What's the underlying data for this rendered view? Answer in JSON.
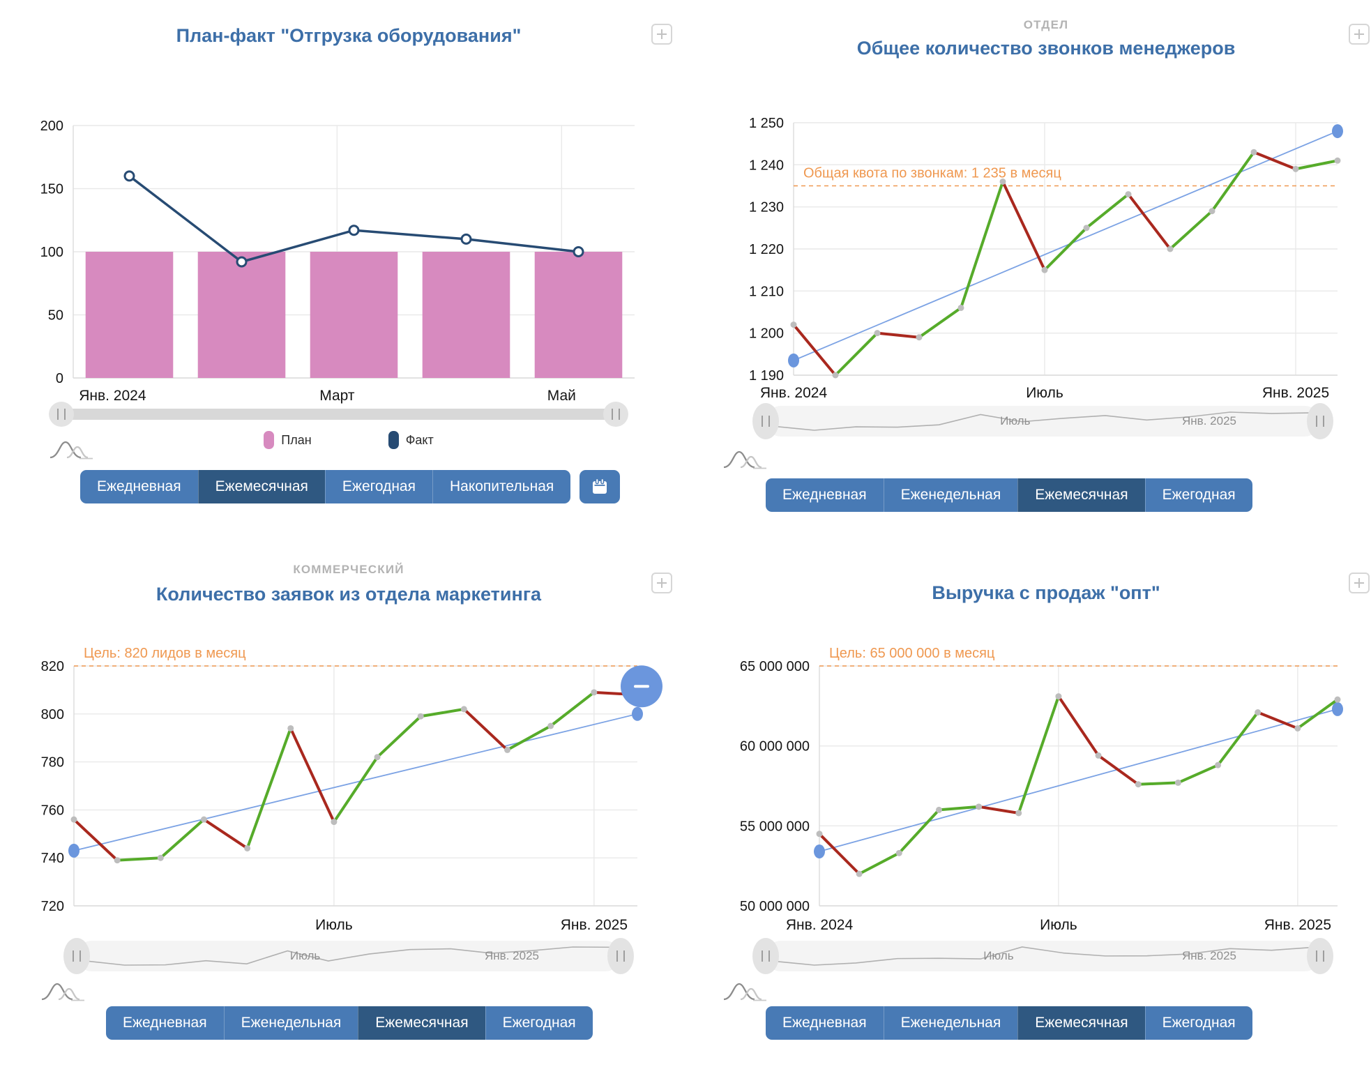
{
  "theme": {
    "title_color": "#3d6fa8",
    "dept_color": "#b3b3b3",
    "target_color": "#ef9850",
    "up_color": "#56ab2a",
    "down_color": "#a9281e",
    "trend_color": "#7ba2e4",
    "trend_dot_color": "#6b96dd",
    "marker_color": "#bdbdbd",
    "plan_color": "#d78abf",
    "fact_color": "#274b73",
    "grid_color": "#e9e9e9",
    "axis_color": "#dcdcdc",
    "axis_text_color": "#141414",
    "button_color": "#487ab5",
    "button_active_color": "#2f5881",
    "spark_color": "#b0b0b0"
  },
  "chart_data": [
    {
      "type": "bar",
      "dept_label": "",
      "title": "План-факт \"Отгрузка оборудования\"",
      "ylim": [
        0,
        200
      ],
      "y_ticks": {
        "values": [
          200,
          150,
          100,
          50,
          0
        ],
        "labels": [
          "200",
          "150",
          "100",
          "50",
          "0"
        ]
      },
      "x_ticks": [
        {
          "index": 0,
          "label": "Янв. 2024"
        },
        {
          "index": 2,
          "label": "Март"
        },
        {
          "index": 4,
          "label": "Май"
        }
      ],
      "series": [
        {
          "name": "План",
          "kind": "bar",
          "values": [
            100,
            100,
            100,
            100,
            100
          ]
        },
        {
          "name": "Факт",
          "kind": "line",
          "values": [
            160,
            92,
            117,
            110,
            100
          ]
        }
      ],
      "legend": [
        {
          "label": "План",
          "color": "#d78abf"
        },
        {
          "label": "Факт",
          "color": "#274b73"
        }
      ],
      "slider": {
        "style": "plain",
        "labels": []
      },
      "period_buttons": [
        "Ежедневная",
        "Ежемесячная",
        "Ежегодная",
        "Накопительная"
      ],
      "active_period": "Ежемесячная",
      "calendar_button": true
    },
    {
      "type": "line",
      "dept_label": "ОТДЕЛ",
      "title": "Общее количество звонков менеджеров",
      "ylim": [
        1190,
        1250
      ],
      "y_ticks": {
        "values": [
          1250,
          1240,
          1230,
          1220,
          1210,
          1200,
          1190
        ],
        "labels": [
          "1 250",
          "1 240",
          "1 230",
          "1 220",
          "1 210",
          "1 200",
          "1 190"
        ]
      },
      "x_ticks": [
        {
          "index": 0,
          "label": "Янв. 2024"
        },
        {
          "index": 6,
          "label": "Июль"
        },
        {
          "index": 12,
          "label": "Янв. 2025"
        }
      ],
      "series": [
        {
          "name": "Звонки",
          "kind": "updown",
          "values": [
            1202,
            1190,
            1200,
            1199,
            1206,
            1236,
            1215,
            1225,
            1233,
            1220,
            1229,
            1243,
            1239,
            1241
          ]
        }
      ],
      "trend": {
        "start": 1193.5,
        "end": 1248
      },
      "target_line": {
        "value": 1235,
        "label": "Общая квота по звонкам: 1 235 в месяц"
      },
      "slider": {
        "style": "spark",
        "labels": [
          {
            "text": "Июль",
            "x": 0.45
          },
          {
            "text": "Янв. 2025",
            "x": 0.8
          }
        ]
      },
      "period_buttons": [
        "Ежедневная",
        "Еженедельная",
        "Ежемесячная",
        "Ежегодная"
      ],
      "active_period": "Ежемесячная",
      "calendar_button": false
    },
    {
      "type": "line",
      "dept_label": "КОММЕРЧЕСКИЙ",
      "title": "Количество заявок из отдела маркетинга",
      "ylim": [
        720,
        820
      ],
      "y_ticks": {
        "values": [
          820,
          800,
          780,
          760,
          740,
          720
        ],
        "labels": [
          "820",
          "800",
          "780",
          "760",
          "740",
          "720"
        ]
      },
      "x_ticks": [
        {
          "index": 6,
          "label": "Июль"
        },
        {
          "index": 12,
          "label": "Янв. 2025"
        }
      ],
      "series": [
        {
          "name": "Заявки",
          "kind": "updown",
          "values": [
            756,
            739,
            740,
            756,
            744,
            794,
            755,
            782,
            799,
            802,
            785,
            795,
            809,
            808
          ]
        }
      ],
      "trend": {
        "start": 743,
        "end": 800
      },
      "target_line": {
        "value": 820,
        "label": "Цель: 820 лидов в месяц"
      },
      "highlight_last": true,
      "slider": {
        "style": "spark",
        "labels": [
          {
            "text": "Июль",
            "x": 0.42
          },
          {
            "text": "Янв. 2025",
            "x": 0.8
          }
        ]
      },
      "period_buttons": [
        "Ежедневная",
        "Еженедельная",
        "Ежемесячная",
        "Ежегодная"
      ],
      "active_period": "Ежемесячная",
      "calendar_button": false
    },
    {
      "type": "line",
      "dept_label": "",
      "title": "Выручка с продаж \"опт\"",
      "ylim": [
        50000000,
        65000000
      ],
      "y_ticks": {
        "values": [
          65000000,
          60000000,
          55000000,
          50000000
        ],
        "labels": [
          "65 000 000",
          "60 000 000",
          "55 000 000",
          "50 000 000"
        ]
      },
      "x_ticks": [
        {
          "index": 0,
          "label": "Янв. 2024"
        },
        {
          "index": 6,
          "label": "Июль"
        },
        {
          "index": 12,
          "label": "Янв. 2025"
        }
      ],
      "series": [
        {
          "name": "Выручка",
          "kind": "updown",
          "values": [
            54500000,
            52000000,
            53300000,
            56000000,
            56200000,
            55800000,
            63100000,
            59400000,
            57600000,
            57700000,
            58800000,
            62100000,
            61100000,
            62900000
          ]
        }
      ],
      "trend": {
        "start": 53400000,
        "end": 62300000
      },
      "target_line": {
        "value": 65000000,
        "label": "Цель: 65 000 000 в месяц"
      },
      "slider": {
        "style": "spark",
        "labels": [
          {
            "text": "Июль",
            "x": 0.42
          },
          {
            "text": "Янв. 2025",
            "x": 0.8
          }
        ]
      },
      "period_buttons": [
        "Ежедневная",
        "Еженедельная",
        "Ежемесячная",
        "Ежегодная"
      ],
      "active_period": "Ежемесячная",
      "calendar_button": false
    }
  ]
}
